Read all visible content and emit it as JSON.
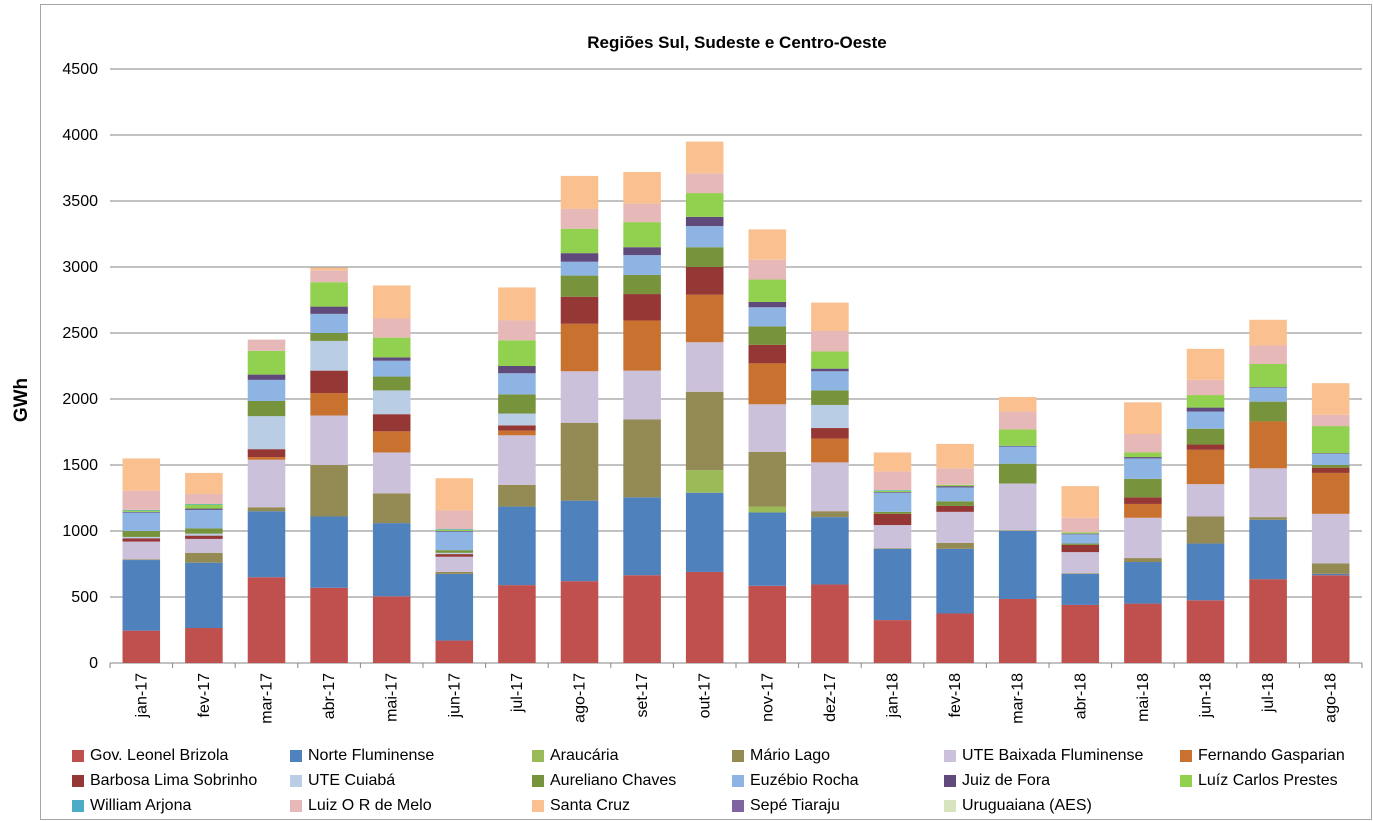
{
  "chart_data": {
    "type": "bar",
    "stacked": true,
    "title": "Regiões Sul, Sudeste e Centro-Oeste",
    "ylabel": "GWh",
    "xlabel": "",
    "ylim": [
      0,
      4500
    ],
    "yticks": [
      0,
      500,
      1000,
      1500,
      2000,
      2500,
      3000,
      3500,
      4000,
      4500
    ],
    "grid": true,
    "legend_position": "bottom",
    "categories": [
      "jan-17",
      "fev-17",
      "mar-17",
      "abr-17",
      "mai-17",
      "jun-17",
      "jul-17",
      "ago-17",
      "set-17",
      "out-17",
      "nov-17",
      "dez-17",
      "jan-18",
      "fev-18",
      "mar-18",
      "abr-18",
      "mai-18",
      "jun-18",
      "jul-18",
      "ago-18"
    ],
    "series": [
      {
        "name": "Gov. Leonel Brizola",
        "color": "#c0504d",
        "values": [
          245,
          265,
          650,
          570,
          505,
          170,
          590,
          620,
          665,
          690,
          585,
          595,
          325,
          375,
          485,
          440,
          450,
          475,
          635,
          665
        ]
      },
      {
        "name": "Norte Fluminense",
        "color": "#4f81bd",
        "values": [
          535,
          495,
          500,
          540,
          555,
          505,
          595,
          610,
          590,
          600,
          555,
          510,
          540,
          490,
          515,
          235,
          315,
          430,
          450,
          10
        ]
      },
      {
        "name": "Araucária",
        "color": "#9bbb59",
        "values": [
          0,
          0,
          0,
          0,
          0,
          0,
          0,
          0,
          0,
          170,
          45,
          0,
          0,
          0,
          0,
          0,
          0,
          0,
          0,
          0
        ]
      },
      {
        "name": "Mário Lago",
        "color": "#948a54",
        "values": [
          5,
          75,
          30,
          390,
          225,
          15,
          165,
          590,
          590,
          595,
          415,
          45,
          5,
          45,
          5,
          5,
          30,
          205,
          20,
          80
        ]
      },
      {
        "name": "UTE Baixada Fluminense",
        "color": "#ccc1da",
        "values": [
          135,
          105,
          360,
          375,
          310,
          115,
          375,
          390,
          370,
          375,
          360,
          370,
          175,
          235,
          355,
          160,
          305,
          245,
          370,
          375
        ]
      },
      {
        "name": "Fernando Gasparian",
        "color": "#c9722f",
        "values": [
          0,
          0,
          20,
          170,
          160,
          0,
          35,
          360,
          380,
          360,
          310,
          180,
          0,
          0,
          0,
          0,
          105,
          260,
          355,
          310
        ]
      },
      {
        "name": "Barbosa Lima Sobrinho",
        "color": "#953735",
        "values": [
          25,
          25,
          60,
          170,
          130,
          20,
          40,
          205,
          200,
          210,
          140,
          80,
          85,
          45,
          0,
          55,
          50,
          40,
          0,
          40
        ]
      },
      {
        "name": "UTE Cuiabá",
        "color": "#b9cde5",
        "values": [
          10,
          15,
          250,
          225,
          180,
          10,
          90,
          0,
          0,
          0,
          0,
          175,
          0,
          0,
          0,
          0,
          0,
          0,
          0,
          0
        ]
      },
      {
        "name": "Aureliano Chaves",
        "color": "#77933c",
        "values": [
          45,
          40,
          115,
          60,
          105,
          20,
          145,
          160,
          145,
          150,
          140,
          110,
          15,
          35,
          150,
          10,
          140,
          120,
          150,
          20
        ]
      },
      {
        "name": "Euzébio Rocha",
        "color": "#8eb4e3",
        "values": [
          140,
          140,
          160,
          145,
          120,
          140,
          160,
          105,
          150,
          160,
          145,
          145,
          145,
          105,
          130,
          70,
          155,
          130,
          105,
          85
        ]
      },
      {
        "name": "Juiz de Fora",
        "color": "#604a7b",
        "values": [
          5,
          10,
          40,
          55,
          25,
          5,
          55,
          65,
          60,
          70,
          40,
          20,
          5,
          10,
          5,
          5,
          10,
          30,
          5,
          5
        ]
      },
      {
        "name": "Luíz Carlos Prestes",
        "color": "#92d050",
        "values": [
          10,
          30,
          180,
          185,
          150,
          10,
          195,
          185,
          190,
          180,
          170,
          130,
          10,
          10,
          125,
          10,
          35,
          95,
          175,
          205
        ]
      },
      {
        "name": "William Arjona",
        "color": "#4bacc6",
        "values": [
          5,
          5,
          0,
          0,
          0,
          5,
          0,
          0,
          0,
          0,
          0,
          0,
          5,
          0,
          0,
          0,
          0,
          0,
          0,
          0
        ]
      },
      {
        "name": "Luiz O R de Melo",
        "color": "#e6b9b8",
        "values": [
          145,
          75,
          85,
          90,
          145,
          140,
          150,
          150,
          140,
          150,
          150,
          155,
          140,
          125,
          135,
          110,
          140,
          115,
          140,
          85
        ]
      },
      {
        "name": "Santa Cruz",
        "color": "#fac090",
        "values": [
          245,
          160,
          0,
          20,
          250,
          245,
          250,
          250,
          240,
          240,
          230,
          215,
          145,
          185,
          110,
          240,
          240,
          235,
          195,
          240
        ]
      },
      {
        "name": "Sepé Tiaraju",
        "color": "#8064a2",
        "values": [
          0,
          0,
          0,
          0,
          0,
          0,
          0,
          0,
          0,
          0,
          0,
          0,
          0,
          0,
          0,
          0,
          0,
          0,
          0,
          0
        ]
      },
      {
        "name": "Uruguaiana (AES)",
        "color": "#d7e4bd",
        "values": [
          0,
          0,
          0,
          0,
          0,
          0,
          0,
          0,
          0,
          0,
          0,
          0,
          0,
          0,
          0,
          0,
          0,
          0,
          0,
          0
        ]
      }
    ]
  }
}
